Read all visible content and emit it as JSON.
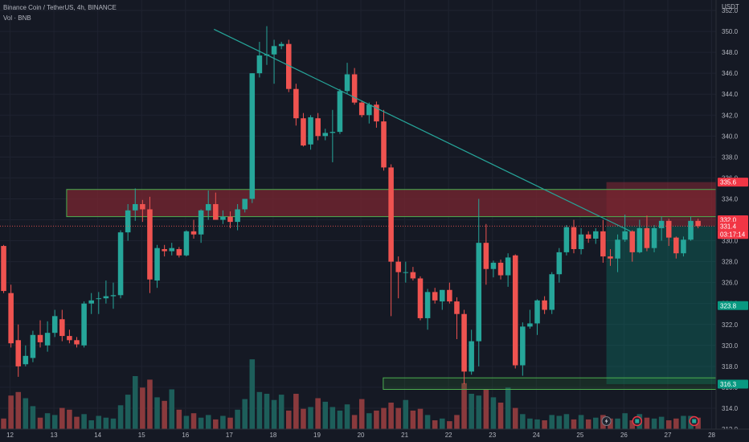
{
  "header": {
    "title": "Binance Coin / TetherUS, 4h, BINANCE",
    "volume_label": "Vol · BNB"
  },
  "price_axis": {
    "unit": "USDT",
    "ticks": [
      "352.0",
      "350.0",
      "348.0",
      "346.0",
      "344.0",
      "342.0",
      "340.0",
      "338.0",
      "336.0",
      "334.0",
      "332.0",
      "330.0",
      "328.0",
      "326.0",
      "324.0",
      "322.0",
      "320.0",
      "318.0",
      "316.0",
      "314.0",
      "312.0"
    ]
  },
  "time_axis": {
    "ticks": [
      "12",
      "13",
      "14",
      "15",
      "16",
      "17",
      "18",
      "19",
      "20",
      "21",
      "22",
      "23",
      "24",
      "25",
      "26",
      "27",
      "28"
    ]
  },
  "price_tags": [
    {
      "label": "335.6",
      "value": 335.6,
      "color": "#f23645"
    },
    {
      "label": "332.0",
      "value": 332.0,
      "color": "#f23645"
    },
    {
      "label": "331.4",
      "value": 331.4,
      "color": "#f23645"
    },
    {
      "label": "03:17:14",
      "value": 330.6,
      "color": "#f23645"
    },
    {
      "label": "323.8",
      "value": 323.8,
      "color": "#089981"
    },
    {
      "label": "316.3",
      "value": 316.3,
      "color": "#089981"
    }
  ],
  "colors": {
    "background": "#151924",
    "grid": "#1f2330",
    "up": "#26a69a",
    "down": "#ef5350",
    "vol_up": "#1d5e5a",
    "vol_down": "#8a3a3d",
    "zone_border": "#4caf50",
    "zone_red_fill": "#7a2530",
    "trendline": "#26a69a"
  },
  "chart_data": {
    "type": "candlestick",
    "ylim": [
      312,
      353
    ],
    "x_range": [
      11.77,
      28.1
    ],
    "bar_width_days": 0.1667,
    "start_day": 11.77,
    "candles": [
      [
        329.5,
        329.6,
        325.0,
        325.2
      ],
      [
        325.0,
        325.8,
        319.8,
        320.2
      ],
      [
        320.5,
        322.0,
        317.0,
        318.0
      ],
      [
        318.2,
        320.0,
        318.0,
        319.0
      ],
      [
        318.8,
        321.4,
        318.4,
        321.0
      ],
      [
        321.0,
        322.4,
        319.8,
        320.3
      ],
      [
        320.0,
        322.3,
        319.4,
        321.2
      ],
      [
        321.2,
        323.4,
        320.8,
        322.8
      ],
      [
        322.5,
        323.4,
        320.4,
        320.9
      ],
      [
        320.9,
        321.5,
        320.2,
        320.5
      ],
      [
        320.5,
        320.8,
        319.8,
        320.1
      ],
      [
        320.0,
        324.2,
        319.8,
        324.0
      ],
      [
        324.0,
        325.0,
        323.0,
        324.3
      ],
      [
        324.5,
        325.1,
        323.0,
        324.5
      ],
      [
        324.5,
        326.2,
        324.0,
        324.7
      ],
      [
        324.7,
        326.0,
        323.5,
        324.8
      ],
      [
        324.8,
        331.0,
        324.5,
        330.8
      ],
      [
        330.8,
        333.5,
        330.0,
        332.9
      ],
      [
        332.9,
        335.0,
        331.9,
        333.5
      ],
      [
        333.5,
        333.9,
        331.8,
        333.0
      ],
      [
        333.0,
        334.2,
        325.0,
        326.3
      ],
      [
        326.2,
        329.6,
        325.5,
        329.3
      ],
      [
        329.2,
        329.6,
        328.5,
        329.0
      ],
      [
        329.0,
        329.8,
        328.6,
        329.3
      ],
      [
        329.2,
        329.4,
        328.4,
        328.6
      ],
      [
        328.6,
        331.0,
        328.5,
        330.9
      ],
      [
        330.9,
        332.0,
        330.2,
        330.6
      ],
      [
        330.6,
        333.0,
        329.8,
        332.9
      ],
      [
        332.9,
        334.8,
        332.0,
        333.5
      ],
      [
        333.5,
        334.6,
        332.0,
        332.0
      ],
      [
        332.0,
        332.9,
        331.6,
        332.3
      ],
      [
        332.3,
        332.8,
        331.2,
        331.8
      ],
      [
        331.8,
        333.5,
        331.0,
        333.0
      ],
      [
        333.0,
        334.0,
        332.7,
        334.0
      ],
      [
        334.0,
        346.0,
        333.6,
        346.0
      ],
      [
        346.0,
        349.0,
        345.6,
        347.7
      ],
      [
        347.7,
        350.5,
        346.8,
        347.8
      ],
      [
        347.8,
        349.2,
        345.0,
        348.6
      ],
      [
        348.6,
        349.0,
        348.3,
        348.8
      ],
      [
        348.8,
        349.2,
        344.2,
        344.5
      ],
      [
        344.5,
        345.0,
        341.0,
        341.7
      ],
      [
        341.7,
        342.2,
        339.0,
        339.1
      ],
      [
        339.2,
        342.0,
        338.7,
        341.8
      ],
      [
        341.7,
        342.2,
        339.6,
        340.0
      ],
      [
        340.0,
        340.7,
        339.6,
        340.3
      ],
      [
        340.3,
        342.5,
        337.5,
        340.4
      ],
      [
        340.4,
        344.5,
        340.2,
        344.3
      ],
      [
        344.3,
        347.0,
        344.0,
        345.9
      ],
      [
        345.9,
        346.5,
        343.0,
        343.2
      ],
      [
        343.2,
        343.4,
        341.8,
        342.0
      ],
      [
        342.0,
        343.2,
        341.2,
        343.0
      ],
      [
        343.0,
        343.3,
        340.8,
        341.4
      ],
      [
        341.4,
        342.5,
        336.7,
        337.0
      ],
      [
        337.0,
        337.3,
        322.8,
        328.0
      ],
      [
        328.0,
        328.5,
        324.5,
        327.0
      ],
      [
        327.0,
        328.0,
        326.0,
        327.0
      ],
      [
        327.0,
        327.5,
        326.2,
        326.4
      ],
      [
        326.4,
        326.6,
        322.4,
        322.6
      ],
      [
        322.6,
        325.4,
        321.5,
        325.1
      ],
      [
        325.1,
        325.5,
        324.0,
        324.3
      ],
      [
        324.2,
        325.3,
        323.4,
        325.3
      ],
      [
        325.3,
        326.0,
        324.0,
        324.2
      ],
      [
        324.2,
        324.6,
        320.6,
        323.0
      ],
      [
        323.0,
        323.4,
        316.3,
        317.5
      ],
      [
        317.5,
        321.5,
        317.2,
        320.4
      ],
      [
        320.4,
        334.0,
        318.0,
        329.8
      ],
      [
        329.8,
        331.6,
        325.8,
        327.3
      ],
      [
        327.3,
        328.1,
        326.5,
        327.9
      ],
      [
        327.9,
        328.2,
        326.3,
        326.7
      ],
      [
        326.7,
        328.8,
        325.6,
        328.4
      ],
      [
        328.6,
        328.7,
        317.8,
        318.1
      ],
      [
        318.1,
        322.2,
        317.1,
        321.8
      ],
      [
        321.8,
        323.4,
        321.6,
        322.1
      ],
      [
        322.1,
        324.4,
        321.0,
        324.3
      ],
      [
        324.3,
        324.7,
        323.0,
        323.4
      ],
      [
        323.4,
        327.0,
        323.0,
        326.8
      ],
      [
        326.8,
        329.3,
        326.0,
        328.9
      ],
      [
        328.9,
        331.5,
        328.6,
        331.3
      ],
      [
        331.3,
        332.0,
        328.8,
        329.2
      ],
      [
        329.2,
        331.2,
        328.7,
        330.6
      ],
      [
        330.6,
        330.9,
        329.8,
        330.2
      ],
      [
        330.2,
        331.2,
        329.7,
        330.9
      ],
      [
        330.9,
        332.0,
        327.9,
        328.5
      ],
      [
        328.5,
        329.2,
        327.6,
        328.3
      ],
      [
        328.3,
        330.6,
        327.0,
        330.1
      ],
      [
        330.1,
        332.5,
        329.9,
        330.9
      ],
      [
        330.9,
        331.0,
        328.0,
        328.9
      ],
      [
        328.9,
        332.0,
        328.8,
        331.2
      ],
      [
        331.2,
        332.4,
        329.0,
        329.3
      ],
      [
        329.3,
        331.5,
        328.9,
        331.2
      ],
      [
        331.2,
        332.3,
        330.0,
        331.9
      ],
      [
        331.9,
        332.1,
        329.5,
        330.3
      ],
      [
        330.3,
        330.4,
        328.3,
        328.8
      ],
      [
        328.8,
        330.4,
        328.5,
        330.1
      ],
      [
        330.1,
        332.3,
        330.0,
        331.9
      ],
      [
        331.9,
        332.1,
        331.2,
        331.4
      ]
    ],
    "volume_max": 1,
    "volumes": [
      0.12,
      0.38,
      0.42,
      0.35,
      0.26,
      0.13,
      0.18,
      0.16,
      0.24,
      0.22,
      0.14,
      0.17,
      0.1,
      0.15,
      0.13,
      0.12,
      0.27,
      0.39,
      0.6,
      0.47,
      0.56,
      0.36,
      0.32,
      0.45,
      0.22,
      0.15,
      0.18,
      0.13,
      0.16,
      0.11,
      0.15,
      0.13,
      0.22,
      0.34,
      0.79,
      0.42,
      0.4,
      0.33,
      0.39,
      0.21,
      0.4,
      0.23,
      0.25,
      0.35,
      0.31,
      0.25,
      0.21,
      0.28,
      0.16,
      0.34,
      0.18,
      0.21,
      0.24,
      0.3,
      0.24,
      0.33,
      0.21,
      0.23,
      0.16,
      0.1,
      0.12,
      0.09,
      0.16,
      0.52,
      0.4,
      0.38,
      0.45,
      0.36,
      0.3,
      0.47,
      0.24,
      0.17,
      0.12,
      0.11,
      0.1,
      0.16,
      0.15,
      0.17,
      0.11,
      0.16,
      0.11,
      0.13,
      0.16,
      0.12,
      0.12,
      0.18,
      0.1,
      0.17,
      0.13,
      0.12,
      0.14,
      0.1,
      0.12,
      0.15,
      0.15,
      0.13
    ],
    "zones": [
      {
        "name": "resistance",
        "y_low": 332.3,
        "y_high": 334.9,
        "x_start": 13.29,
        "x_end": 28.1
      },
      {
        "name": "support",
        "y_low": 315.8,
        "y_high": 316.9,
        "x_start": 20.51,
        "x_end": 28.1
      }
    ],
    "position": {
      "x_start": 25.6,
      "x_end": 28.1,
      "entry": 331.4,
      "stop": 335.6,
      "target": 316.3
    },
    "trendline": {
      "x1": 16.65,
      "y1": 350.2,
      "x2": 26.15,
      "y2": 330.9
    },
    "last_price": 331.4,
    "markers": [
      {
        "name": "lightning-icon",
        "x": 25.6
      },
      {
        "name": "earnings-icon",
        "x": 26.3
      },
      {
        "name": "earnings-icon",
        "x": 27.6
      }
    ]
  }
}
